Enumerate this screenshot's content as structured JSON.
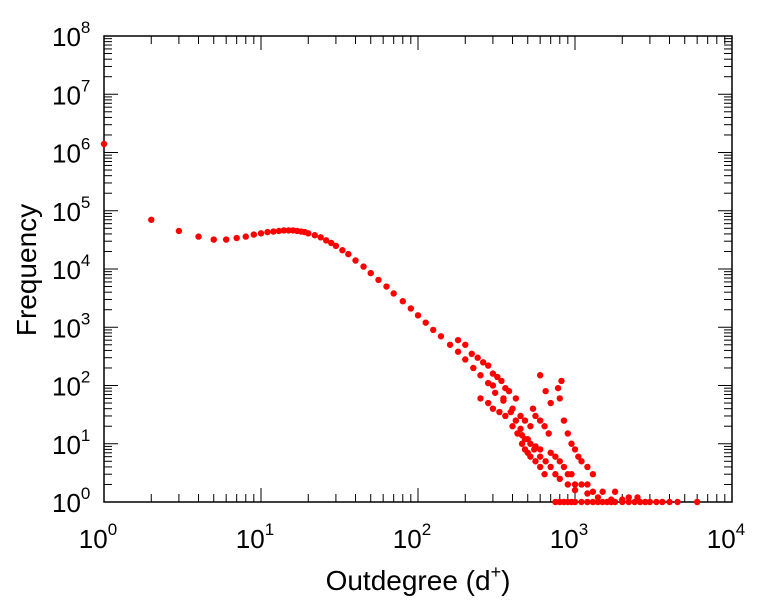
{
  "chart_data": {
    "type": "scatter",
    "title": "",
    "xlabel": "Outdegree (d",
    "xlabel_sup": "+",
    "xlabel_close": ")",
    "ylabel": "Frequency",
    "xscale": "log",
    "yscale": "log",
    "xlim": [
      1,
      10000
    ],
    "ylim": [
      1,
      100000000
    ],
    "grid": false,
    "legend": "none",
    "marker_color": "#ff0000",
    "x_ticks": [
      {
        "base": "10",
        "exp": "0"
      },
      {
        "base": "10",
        "exp": "1"
      },
      {
        "base": "10",
        "exp": "2"
      },
      {
        "base": "10",
        "exp": "3"
      },
      {
        "base": "10",
        "exp": "4"
      }
    ],
    "y_ticks": [
      {
        "base": "10",
        "exp": "0"
      },
      {
        "base": "10",
        "exp": "1"
      },
      {
        "base": "10",
        "exp": "2"
      },
      {
        "base": "10",
        "exp": "3"
      },
      {
        "base": "10",
        "exp": "4"
      },
      {
        "base": "10",
        "exp": "5"
      },
      {
        "base": "10",
        "exp": "6"
      },
      {
        "base": "10",
        "exp": "7"
      },
      {
        "base": "10",
        "exp": "8"
      }
    ],
    "points": [
      [
        1,
        1400000
      ],
      [
        2,
        70000
      ],
      [
        3,
        45000
      ],
      [
        4,
        36000
      ],
      [
        5,
        32000
      ],
      [
        6,
        32000
      ],
      [
        7,
        34000
      ],
      [
        8,
        36000
      ],
      [
        9,
        39000
      ],
      [
        10,
        41000
      ],
      [
        11,
        43000
      ],
      [
        12,
        44000
      ],
      [
        13,
        45000
      ],
      [
        14,
        46000
      ],
      [
        15,
        46000
      ],
      [
        16,
        46000
      ],
      [
        17,
        45000
      ],
      [
        18,
        44000
      ],
      [
        19,
        43000
      ],
      [
        20,
        41000
      ],
      [
        22,
        38000
      ],
      [
        24,
        35000
      ],
      [
        26,
        31000
      ],
      [
        28,
        28000
      ],
      [
        30,
        25000
      ],
      [
        33,
        21000
      ],
      [
        36,
        18000
      ],
      [
        40,
        14000
      ],
      [
        45,
        11000
      ],
      [
        50,
        8500
      ],
      [
        56,
        6500
      ],
      [
        63,
        5000
      ],
      [
        70,
        3800
      ],
      [
        80,
        2800
      ],
      [
        90,
        2100
      ],
      [
        100,
        1600
      ],
      [
        112,
        1200
      ],
      [
        125,
        900
      ],
      [
        140,
        700
      ],
      [
        160,
        500
      ],
      [
        180,
        380
      ],
      [
        200,
        280
      ],
      [
        225,
        200
      ],
      [
        250,
        150
      ],
      [
        280,
        110
      ],
      [
        310,
        75
      ],
      [
        350,
        55
      ],
      [
        390,
        35
      ],
      [
        420,
        25
      ],
      [
        450,
        18
      ],
      [
        500,
        12
      ],
      [
        550,
        8
      ],
      [
        600,
        6
      ],
      [
        650,
        5
      ],
      [
        700,
        4
      ],
      [
        750,
        3
      ],
      [
        800,
        2.5
      ],
      [
        900,
        2
      ],
      [
        1000,
        1.6
      ],
      [
        1200,
        1.4
      ],
      [
        1400,
        1.2
      ],
      [
        1700,
        1.1
      ],
      [
        2000,
        1.1
      ],
      [
        180,
        600
      ],
      [
        200,
        500
      ],
      [
        220,
        350
      ],
      [
        240,
        300
      ],
      [
        260,
        250
      ],
      [
        280,
        220
      ],
      [
        300,
        160
      ],
      [
        320,
        140
      ],
      [
        340,
        120
      ],
      [
        360,
        90
      ],
      [
        380,
        80
      ],
      [
        250,
        60
      ],
      [
        280,
        50
      ],
      [
        300,
        40
      ],
      [
        330,
        35
      ],
      [
        360,
        30
      ],
      [
        400,
        20
      ],
      [
        430,
        15
      ],
      [
        460,
        14
      ],
      [
        480,
        12
      ],
      [
        520,
        10
      ],
      [
        560,
        9
      ],
      [
        600,
        8
      ],
      [
        300,
        100
      ],
      [
        350,
        60
      ],
      [
        400,
        40
      ],
      [
        420,
        60
      ],
      [
        450,
        30
      ],
      [
        480,
        25
      ],
      [
        520,
        20
      ],
      [
        540,
        40
      ],
      [
        560,
        30
      ],
      [
        600,
        25
      ],
      [
        640,
        20
      ],
      [
        680,
        15
      ],
      [
        460,
        10
      ],
      [
        480,
        8
      ],
      [
        500,
        7
      ],
      [
        520,
        6
      ],
      [
        560,
        5
      ],
      [
        600,
        4
      ],
      [
        640,
        3
      ],
      [
        700,
        7
      ],
      [
        750,
        6
      ],
      [
        800,
        5
      ],
      [
        850,
        4
      ],
      [
        900,
        3
      ],
      [
        950,
        3
      ],
      [
        1000,
        2
      ],
      [
        1100,
        2
      ],
      [
        1200,
        2
      ],
      [
        1300,
        1.5
      ],
      [
        1500,
        1.5
      ],
      [
        1800,
        1.5
      ],
      [
        2200,
        1.2
      ],
      [
        2500,
        1.2
      ],
      [
        600,
        150
      ],
      [
        650,
        80
      ],
      [
        700,
        50
      ],
      [
        780,
        90
      ],
      [
        820,
        120
      ],
      [
        800,
        60
      ],
      [
        850,
        25
      ],
      [
        900,
        15
      ],
      [
        950,
        10
      ],
      [
        1000,
        8
      ],
      [
        1050,
        6
      ],
      [
        1100,
        5
      ],
      [
        1200,
        4
      ],
      [
        1300,
        3
      ],
      [
        750,
        1
      ],
      [
        800,
        1
      ],
      [
        850,
        1
      ],
      [
        900,
        1
      ],
      [
        950,
        1
      ],
      [
        1000,
        1
      ],
      [
        1100,
        1
      ],
      [
        1200,
        1
      ],
      [
        1300,
        1
      ],
      [
        1400,
        1
      ],
      [
        1500,
        1
      ],
      [
        1600,
        1
      ],
      [
        1700,
        1
      ],
      [
        1800,
        1
      ],
      [
        2000,
        1
      ],
      [
        2200,
        1
      ],
      [
        2400,
        1
      ],
      [
        2600,
        1
      ],
      [
        2800,
        1
      ],
      [
        3000,
        1
      ],
      [
        3300,
        1
      ],
      [
        3600,
        1
      ],
      [
        4000,
        1
      ],
      [
        4500,
        1
      ],
      [
        6000,
        1
      ]
    ]
  }
}
